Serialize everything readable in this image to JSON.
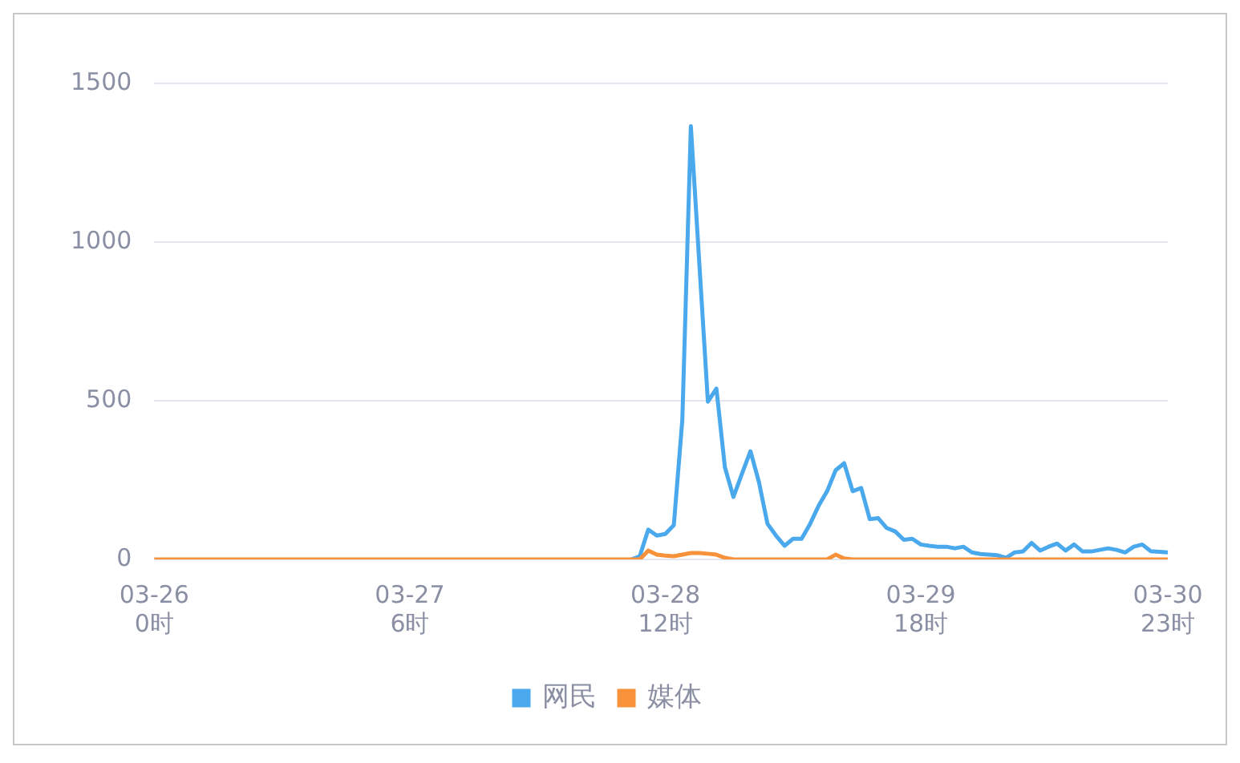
{
  "chart_data": {
    "type": "line",
    "categories": [
      "03-26\n0时",
      null,
      null,
      null,
      null,
      null,
      null,
      null,
      null,
      null,
      null,
      null,
      null,
      null,
      null,
      null,
      null,
      null,
      null,
      null,
      null,
      null,
      null,
      null,
      null,
      null,
      null,
      null,
      null,
      null,
      "03-27\n6时",
      null,
      null,
      null,
      null,
      null,
      null,
      null,
      null,
      null,
      null,
      null,
      null,
      null,
      null,
      null,
      null,
      null,
      null,
      null,
      null,
      null,
      null,
      null,
      null,
      null,
      null,
      null,
      null,
      null,
      "03-28\n12时",
      null,
      null,
      null,
      null,
      null,
      null,
      null,
      null,
      null,
      null,
      null,
      null,
      null,
      null,
      null,
      null,
      null,
      null,
      null,
      null,
      null,
      null,
      null,
      null,
      null,
      null,
      null,
      null,
      null,
      "03-29\n18时",
      null,
      null,
      null,
      null,
      null,
      null,
      null,
      null,
      null,
      null,
      null,
      null,
      null,
      null,
      null,
      null,
      null,
      null,
      null,
      null,
      null,
      null,
      null,
      null,
      null,
      null,
      null,
      null,
      "03-30\n23时"
    ],
    "ylim": [
      0,
      1500
    ],
    "yticks": [
      0,
      500,
      1000,
      1500
    ],
    "grid": "y",
    "legend": "bottom",
    "marker": "none",
    "line_style": "solid",
    "series": [
      {
        "name": "网民",
        "color": "#4aa8ec",
        "values": [
          null,
          null,
          null,
          null,
          null,
          null,
          null,
          null,
          null,
          null,
          null,
          null,
          null,
          null,
          null,
          null,
          null,
          null,
          null,
          null,
          null,
          null,
          null,
          null,
          null,
          null,
          null,
          null,
          null,
          null,
          null,
          null,
          null,
          null,
          null,
          null,
          null,
          null,
          null,
          null,
          null,
          null,
          null,
          null,
          null,
          null,
          null,
          null,
          null,
          null,
          null,
          null,
          null,
          null,
          null,
          null,
          0,
          10,
          94,
          75,
          80,
          108,
          440,
          1365,
          930,
          497,
          538,
          290,
          197,
          270,
          341,
          243,
          112,
          75,
          43,
          65,
          65,
          112,
          169,
          215,
          281,
          303,
          215,
          225,
          127,
          130,
          99,
          88,
          62,
          65,
          47,
          43,
          40,
          40,
          35,
          40,
          22,
          17,
          15,
          13,
          5,
          22,
          25,
          52,
          28,
          40,
          50,
          28,
          47,
          25,
          25,
          30,
          35,
          30,
          22,
          40,
          47,
          26,
          24,
          22
        ]
      },
      {
        "name": "媒体",
        "color": "#f7923a",
        "values": [
          0,
          0,
          0,
          0,
          0,
          0,
          0,
          0,
          0,
          0,
          0,
          0,
          0,
          0,
          0,
          0,
          0,
          0,
          0,
          0,
          0,
          0,
          0,
          0,
          0,
          0,
          0,
          0,
          0,
          0,
          0,
          0,
          0,
          0,
          0,
          0,
          0,
          0,
          0,
          0,
          0,
          0,
          0,
          0,
          0,
          0,
          0,
          0,
          0,
          0,
          0,
          0,
          0,
          0,
          0,
          0,
          0,
          0,
          28,
          15,
          12,
          10,
          15,
          20,
          20,
          18,
          15,
          5,
          0,
          0,
          0,
          0,
          0,
          0,
          0,
          0,
          0,
          0,
          0,
          0,
          15,
          3,
          0,
          0,
          0,
          0,
          0,
          0,
          0,
          0,
          0,
          0,
          0,
          0,
          0,
          0,
          0,
          0,
          0,
          0,
          0,
          0,
          0,
          0,
          0,
          0,
          0,
          0,
          0,
          0,
          0,
          0,
          0,
          0,
          0,
          0,
          0,
          0,
          0,
          0
        ]
      }
    ]
  }
}
